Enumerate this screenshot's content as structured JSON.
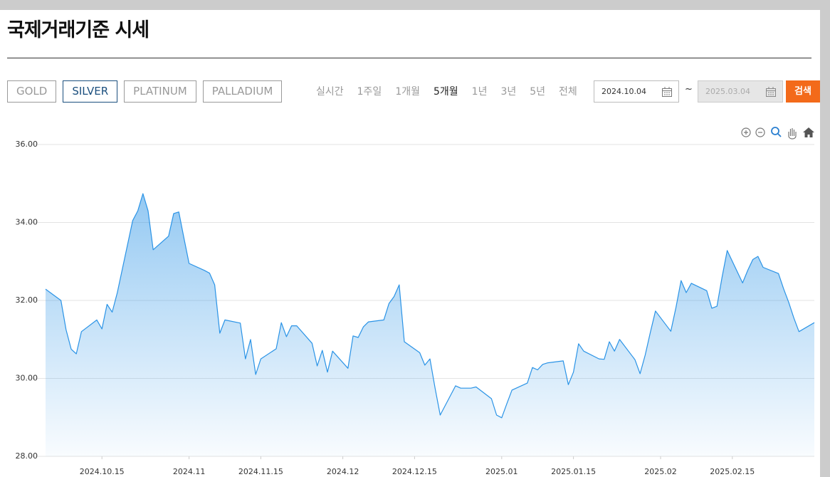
{
  "header": {
    "title": "국제거래기준 시세"
  },
  "metal_tabs": [
    "GOLD",
    "SILVER",
    "PLATINUM",
    "PALLADIUM"
  ],
  "active_metal_tab": 1,
  "period_tabs": [
    "실시간",
    "1주일",
    "1개월",
    "5개월",
    "1년",
    "3년",
    "5년",
    "전체"
  ],
  "active_period_tab": 3,
  "date_range": {
    "start": "2024.10.04",
    "separator": "~",
    "end": "2025.03.04"
  },
  "search_button": "검색",
  "chart_data": {
    "type": "area",
    "color": "#2a93e6",
    "x": [
      "2024-10-04",
      "2024-10-07",
      "2024-10-08",
      "2024-10-09",
      "2024-10-10",
      "2024-10-11",
      "2024-10-14",
      "2024-10-15",
      "2024-10-16",
      "2024-10-17",
      "2024-10-18",
      "2024-10-21",
      "2024-10-22",
      "2024-10-23",
      "2024-10-24",
      "2024-10-25",
      "2024-10-28",
      "2024-10-29",
      "2024-10-30",
      "2024-10-31",
      "2024-11-01",
      "2024-11-04",
      "2024-11-05",
      "2024-11-06",
      "2024-11-07",
      "2024-11-08",
      "2024-11-11",
      "2024-11-12",
      "2024-11-13",
      "2024-11-14",
      "2024-11-15",
      "2024-11-18",
      "2024-11-19",
      "2024-11-20",
      "2024-11-21",
      "2024-11-22",
      "2024-11-25",
      "2024-11-26",
      "2024-11-27",
      "2024-11-28",
      "2024-11-29",
      "2024-12-02",
      "2024-12-03",
      "2024-12-04",
      "2024-12-05",
      "2024-12-06",
      "2024-12-09",
      "2024-12-10",
      "2024-12-11",
      "2024-12-12",
      "2024-12-13",
      "2024-12-16",
      "2024-12-17",
      "2024-12-18",
      "2024-12-19",
      "2024-12-20",
      "2024-12-23",
      "2024-12-24",
      "2024-12-25",
      "2024-12-26",
      "2024-12-27",
      "2024-12-30",
      "2024-12-31",
      "2025-01-01",
      "2025-01-02",
      "2025-01-03",
      "2025-01-06",
      "2025-01-07",
      "2025-01-08",
      "2025-01-09",
      "2025-01-10",
      "2025-01-13",
      "2025-01-14",
      "2025-01-15",
      "2025-01-16",
      "2025-01-17",
      "2025-01-20",
      "2025-01-21",
      "2025-01-22",
      "2025-01-23",
      "2025-01-24",
      "2025-01-27",
      "2025-01-28",
      "2025-01-29",
      "2025-01-30",
      "2025-01-31",
      "2025-02-03",
      "2025-02-04",
      "2025-02-05",
      "2025-02-06",
      "2025-02-07",
      "2025-02-10",
      "2025-02-11",
      "2025-02-12",
      "2025-02-13",
      "2025-02-14",
      "2025-02-17",
      "2025-02-18",
      "2025-02-19",
      "2025-02-20",
      "2025-02-21",
      "2025-02-24",
      "2025-02-25",
      "2025-02-26",
      "2025-02-27",
      "2025-02-28",
      "2025-03-03"
    ],
    "values": [
      32.29,
      32.0,
      31.25,
      30.75,
      30.63,
      31.2,
      31.5,
      31.27,
      31.9,
      31.7,
      32.2,
      34.05,
      34.3,
      34.74,
      34.3,
      33.3,
      33.65,
      34.23,
      34.27,
      33.6,
      32.95,
      32.77,
      32.7,
      32.4,
      31.16,
      31.5,
      31.42,
      30.5,
      31.0,
      30.1,
      30.5,
      30.76,
      31.43,
      31.07,
      31.35,
      31.35,
      30.9,
      30.32,
      30.72,
      30.16,
      30.7,
      30.26,
      31.09,
      31.05,
      31.32,
      31.45,
      31.5,
      31.92,
      32.1,
      32.4,
      30.94,
      30.66,
      30.34,
      30.5,
      29.75,
      29.06,
      29.81,
      29.75,
      29.75,
      29.75,
      29.78,
      29.48,
      29.06,
      28.99,
      29.35,
      29.7,
      29.88,
      30.28,
      30.22,
      30.36,
      30.4,
      30.45,
      29.84,
      30.16,
      30.89,
      30.7,
      30.5,
      30.49,
      30.94,
      30.7,
      31.0,
      30.48,
      30.12,
      30.6,
      31.18,
      31.73,
      31.21,
      31.82,
      32.51,
      32.2,
      32.44,
      32.25,
      31.8,
      31.85,
      32.6,
      33.28,
      32.45,
      32.77,
      33.05,
      33.13,
      32.85,
      32.69,
      32.3,
      31.95,
      31.55,
      31.2,
      31.43
    ],
    "xlim": [
      "2024-10-04",
      "2025-03-03"
    ],
    "xticks": [
      {
        "value": "2024-10-15",
        "label": "2024.10.15"
      },
      {
        "value": "2024-11-01",
        "label": "2024.11"
      },
      {
        "value": "2024-11-15",
        "label": "2024.11.15"
      },
      {
        "value": "2024-12-01",
        "label": "2024.12"
      },
      {
        "value": "2024-12-15",
        "label": "2024.12.15"
      },
      {
        "value": "2025-01-01",
        "label": "2025.01"
      },
      {
        "value": "2025-01-15",
        "label": "2025.01.15"
      },
      {
        "value": "2025-02-01",
        "label": "2025.02"
      },
      {
        "value": "2025-02-15",
        "label": "2025.02.15"
      }
    ],
    "ylim": [
      28,
      36
    ],
    "yticks": [
      {
        "value": 28,
        "label": "28.00"
      },
      {
        "value": 30,
        "label": "30.00"
      },
      {
        "value": 32,
        "label": "32.00"
      },
      {
        "value": 34,
        "label": "34.00"
      },
      {
        "value": 36,
        "label": "36.00"
      }
    ],
    "grid": true
  }
}
